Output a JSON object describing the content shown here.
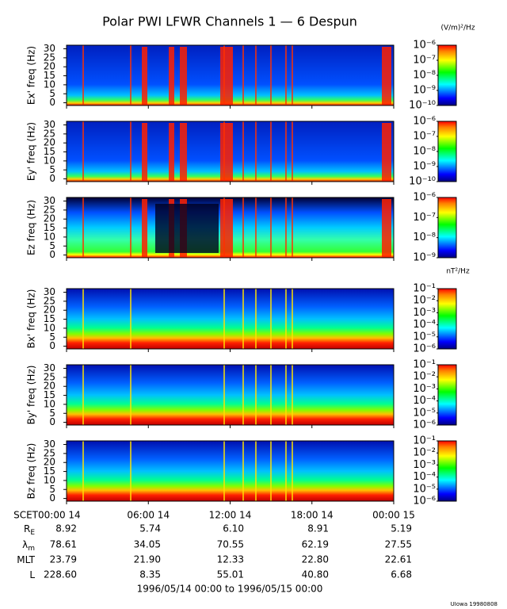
{
  "title": "Polar PWI LFWR Channels 1 — 6 Despun",
  "chart_data": [
    {
      "type": "spectrogram",
      "ylabel": "Ex' freq (Hz)",
      "xlim": [
        0,
        24
      ],
      "ylim": [
        -1.5,
        32
      ],
      "yticks": [
        0,
        5,
        10,
        15,
        20,
        25,
        30
      ],
      "cunit": "(V/m)²/Hz",
      "clog": true,
      "clim": [
        1e-10,
        1e-06
      ],
      "cticks": [
        {
          "value": 1e-06,
          "label": "10⁻⁶"
        },
        {
          "value": 1e-07,
          "label": "10⁻⁷"
        },
        {
          "value": 1e-08,
          "label": "10⁻⁸"
        },
        {
          "value": 1e-09,
          "label": "10⁻⁹"
        },
        {
          "value": 1e-10,
          "label": "10⁻¹⁰"
        }
      ]
    },
    {
      "type": "spectrogram",
      "ylabel": "Ey' freq (Hz)",
      "xlim": [
        0,
        24
      ],
      "ylim": [
        -1.5,
        32
      ],
      "yticks": [
        0,
        5,
        10,
        15,
        20,
        25,
        30
      ],
      "clog": true,
      "clim": [
        1e-10,
        1e-06
      ],
      "cticks": [
        {
          "value": 1e-06,
          "label": "10⁻⁶"
        },
        {
          "value": 1e-07,
          "label": "10⁻⁷"
        },
        {
          "value": 1e-08,
          "label": "10⁻⁸"
        },
        {
          "value": 1e-09,
          "label": "10⁻⁹"
        },
        {
          "value": 1e-10,
          "label": "10⁻¹⁰"
        }
      ]
    },
    {
      "type": "spectrogram",
      "ylabel": "Ez freq (Hz)",
      "xlim": [
        0,
        24
      ],
      "ylim": [
        -1.5,
        32
      ],
      "yticks": [
        0,
        5,
        10,
        15,
        20,
        25,
        30
      ],
      "clog": true,
      "clim": [
        1e-09,
        1e-06
      ],
      "cticks": [
        {
          "value": 1e-06,
          "label": "10⁻⁶"
        },
        {
          "value": 1e-07,
          "label": "10⁻⁷"
        },
        {
          "value": 1e-08,
          "label": "10⁻⁸"
        },
        {
          "value": 1e-09,
          "label": "10⁻⁹"
        }
      ]
    },
    {
      "type": "spectrogram",
      "ylabel": "Bx' freq (Hz)",
      "xlim": [
        0,
        24
      ],
      "ylim": [
        -1.5,
        32
      ],
      "yticks": [
        0,
        5,
        10,
        15,
        20,
        25,
        30
      ],
      "cunit": "nT²/Hz",
      "clog": true,
      "clim": [
        1e-06,
        0.1
      ],
      "cticks": [
        {
          "value": 0.1,
          "label": "10⁻¹"
        },
        {
          "value": 0.01,
          "label": "10⁻²"
        },
        {
          "value": 0.001,
          "label": "10⁻³"
        },
        {
          "value": 0.0001,
          "label": "10⁻⁴"
        },
        {
          "value": 1e-05,
          "label": "10⁻⁵"
        },
        {
          "value": 1e-06,
          "label": "10⁻⁶"
        }
      ]
    },
    {
      "type": "spectrogram",
      "ylabel": "By' freq (Hz)",
      "xlim": [
        0,
        24
      ],
      "ylim": [
        -1.5,
        32
      ],
      "yticks": [
        0,
        5,
        10,
        15,
        20,
        25,
        30
      ],
      "clog": true,
      "clim": [
        1e-06,
        0.1
      ],
      "cticks": [
        {
          "value": 0.1,
          "label": "10⁻¹"
        },
        {
          "value": 0.01,
          "label": "10⁻²"
        },
        {
          "value": 0.001,
          "label": "10⁻³"
        },
        {
          "value": 0.0001,
          "label": "10⁻⁴"
        },
        {
          "value": 1e-05,
          "label": "10⁻⁵"
        },
        {
          "value": 1e-06,
          "label": "10⁻⁶"
        }
      ]
    },
    {
      "type": "spectrogram",
      "ylabel": "Bz freq (Hz)",
      "xlim": [
        0,
        24
      ],
      "ylim": [
        -1.5,
        32
      ],
      "yticks": [
        0,
        5,
        10,
        15,
        20,
        25,
        30
      ],
      "clog": true,
      "clim": [
        1e-06,
        0.1
      ],
      "cticks": [
        {
          "value": 0.1,
          "label": "10⁻¹"
        },
        {
          "value": 0.01,
          "label": "10⁻²"
        },
        {
          "value": 0.001,
          "label": "10⁻³"
        },
        {
          "value": 0.0001,
          "label": "10⁻⁴"
        },
        {
          "value": 1e-05,
          "label": "10⁻⁵"
        },
        {
          "value": 1e-06,
          "label": "10⁻⁶"
        }
      ],
      "xlabel": "SCET",
      "xticks": [
        {
          "value": 0,
          "label": "00:00 14"
        },
        {
          "value": 6,
          "label": "06:00 14"
        },
        {
          "value": 12,
          "label": "12:00 14"
        },
        {
          "value": 18,
          "label": "18:00 14"
        },
        {
          "value": 24,
          "label": "00:00 15"
        }
      ]
    }
  ],
  "ephemeris": [
    {
      "label": "R",
      "sub": "E",
      "values": [
        "8.92",
        "5.74",
        "6.10",
        "8.91",
        "5.19"
      ]
    },
    {
      "label": "λ",
      "sub": "m",
      "values": [
        "78.61",
        "34.05",
        "70.55",
        "62.19",
        "27.55"
      ]
    },
    {
      "label": "MLT",
      "values": [
        "23.79",
        "21.90",
        "12.33",
        "22.80",
        "22.61"
      ]
    },
    {
      "label": "L",
      "values": [
        "228.60",
        "8.35",
        "55.01",
        "40.80",
        "6.68"
      ]
    }
  ],
  "date_range": "1996/05/14 00:00 to 1996/05/15 00:00",
  "footer": "UIowa 19980808"
}
